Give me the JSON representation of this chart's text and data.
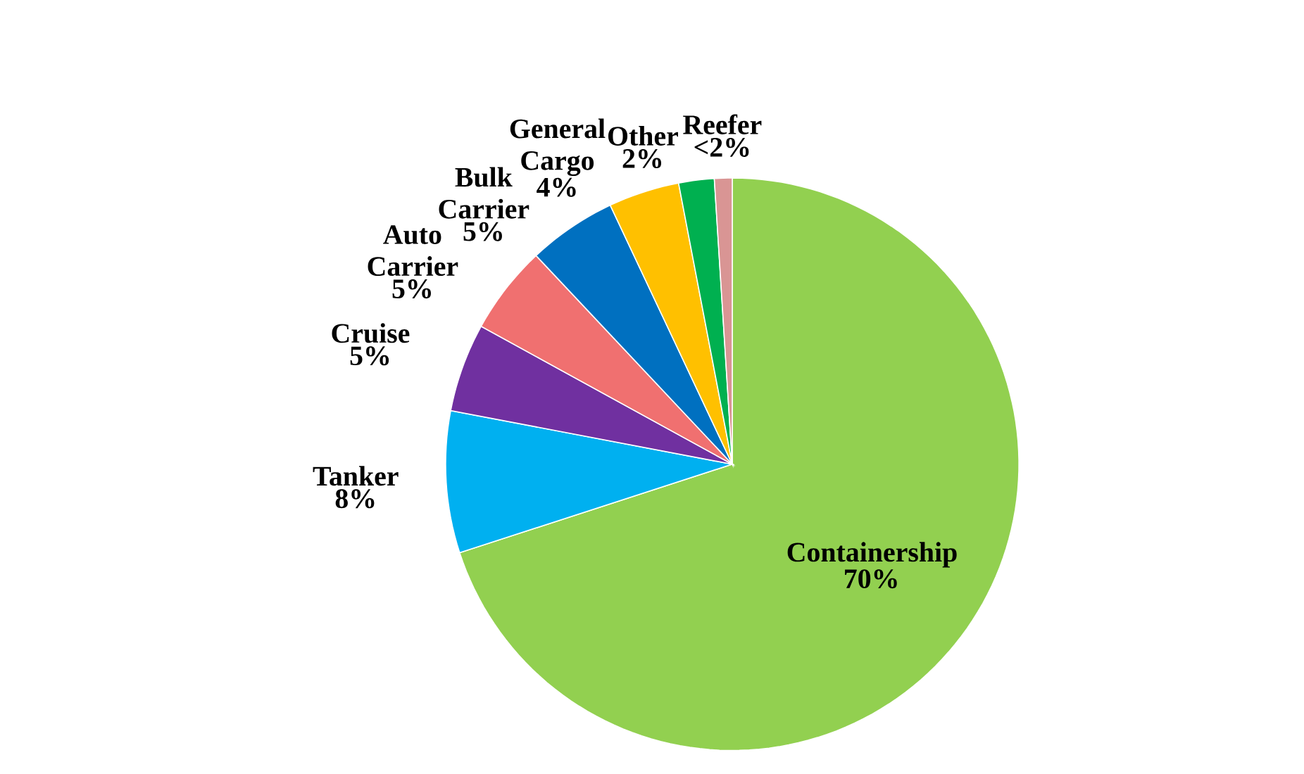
{
  "chart_data": {
    "type": "pie",
    "categories": [
      "Containership",
      "Tanker",
      "Cruise",
      "Auto Carrier",
      "Bulk Carrier",
      "General Cargo",
      "Other",
      "Reefer"
    ],
    "values": [
      70,
      8,
      5,
      5,
      5,
      4,
      2,
      1
    ],
    "value_labels": [
      "70%",
      "8%",
      "5%",
      "5%",
      "5%",
      "4%",
      "2%",
      "<2%"
    ],
    "colors": [
      "#92d050",
      "#00b0f0",
      "#7030a0",
      "#f07070",
      "#0070c0",
      "#ffc000",
      "#00b050",
      "#d99594"
    ]
  }
}
